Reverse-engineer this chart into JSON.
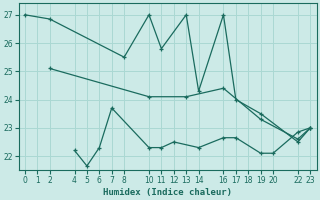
{
  "xlabel": "Humidex (Indice chaleur)",
  "bg_color": "#cceae7",
  "line_color": "#1a6b5e",
  "grid_color": "#aad8d3",
  "ylim": [
    21.5,
    27.4
  ],
  "xlim": [
    -0.5,
    23.5
  ],
  "xticks": [
    0,
    1,
    2,
    4,
    5,
    6,
    7,
    8,
    10,
    11,
    12,
    13,
    14,
    16,
    17,
    18,
    19,
    20,
    22,
    23
  ],
  "yticks": [
    22,
    23,
    24,
    25,
    26,
    27
  ],
  "line1_x": [
    0,
    2,
    8,
    10,
    11,
    13,
    14,
    16,
    17,
    19,
    22,
    23
  ],
  "line1_y": [
    27.0,
    26.85,
    25.5,
    27.0,
    25.8,
    27.0,
    24.3,
    27.0,
    24.0,
    23.5,
    22.5,
    23.0
  ],
  "line2_x": [
    2,
    10,
    13,
    16,
    19,
    22,
    23
  ],
  "line2_y": [
    25.1,
    24.1,
    24.1,
    24.4,
    23.3,
    22.6,
    23.0
  ],
  "line3_x": [
    4,
    5,
    6,
    7,
    10,
    11,
    12,
    14,
    16,
    17,
    19,
    20,
    22,
    23
  ],
  "line3_y": [
    22.2,
    21.65,
    22.3,
    23.7,
    22.3,
    22.3,
    22.5,
    22.3,
    22.65,
    22.65,
    22.1,
    22.1,
    22.85,
    23.0
  ]
}
